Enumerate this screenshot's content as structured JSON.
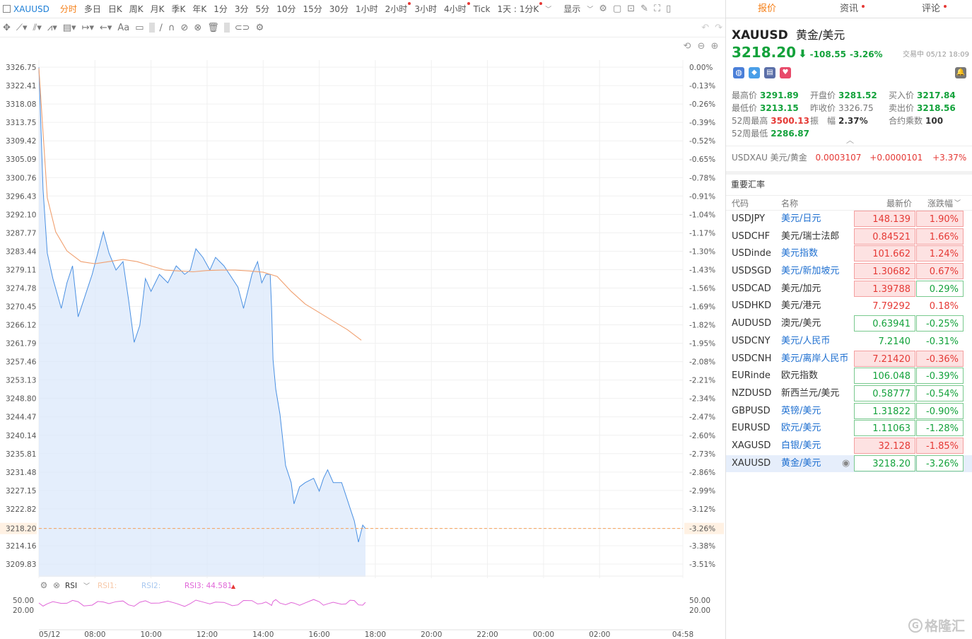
{
  "toolbar": {
    "symbol": "XAUUSD",
    "timeframes": [
      "分时",
      "多日",
      "日K",
      "周K",
      "月K",
      "季K",
      "年K",
      "1分",
      "3分",
      "5分",
      "10分",
      "15分",
      "30分",
      "1小时",
      "2小时",
      "3小时",
      "4小时",
      "Tick",
      "1天 : 1分K"
    ],
    "active_timeframe": "分时",
    "display_label": "显示"
  },
  "chart_data": {
    "type": "line",
    "symbol": "XAUUSD",
    "x_ticks": [
      "05/12",
      "08:00",
      "10:00",
      "12:00",
      "14:00",
      "16:00",
      "18:00",
      "20:00",
      "22:00",
      "00:00",
      "02:00",
      "04:58"
    ],
    "y_ticks": [
      "3326.75",
      "3322.41",
      "3318.08",
      "3313.75",
      "3309.42",
      "3305.09",
      "3300.76",
      "3296.43",
      "3292.10",
      "3287.77",
      "3283.44",
      "3279.11",
      "3274.78",
      "3270.45",
      "3266.12",
      "3261.79",
      "3257.46",
      "3253.13",
      "3248.80",
      "3244.47",
      "3240.14",
      "3235.81",
      "3231.48",
      "3227.15",
      "3222.82",
      "3218.20",
      "3214.16",
      "3209.83"
    ],
    "pct_ticks": [
      "0.00%",
      "-0.13%",
      "-0.26%",
      "-0.39%",
      "-0.52%",
      "-0.65%",
      "-0.78%",
      "-0.91%",
      "-1.04%",
      "-1.17%",
      "-1.30%",
      "-1.43%",
      "-1.56%",
      "-1.69%",
      "-1.82%",
      "-1.95%",
      "-2.08%",
      "-2.21%",
      "-2.34%",
      "-2.47%",
      "-2.60%",
      "-2.73%",
      "-2.86%",
      "-2.99%",
      "-3.12%",
      "-3.26%",
      "-3.38%",
      "-3.51%"
    ],
    "ylim": [
      3209.83,
      3326.75
    ],
    "prev_close": 3326.75,
    "last_price": 3218.2,
    "last_pct": "-3.26%",
    "price_series": [
      [
        6.0,
        3326.7
      ],
      [
        6.15,
        3298
      ],
      [
        6.3,
        3283
      ],
      [
        6.5,
        3277
      ],
      [
        6.8,
        3270
      ],
      [
        7.0,
        3276
      ],
      [
        7.2,
        3280
      ],
      [
        7.4,
        3268
      ],
      [
        7.6,
        3272
      ],
      [
        7.9,
        3278
      ],
      [
        8.1,
        3283
      ],
      [
        8.3,
        3288
      ],
      [
        8.5,
        3283
      ],
      [
        8.75,
        3279
      ],
      [
        9.0,
        3281
      ],
      [
        9.2,
        3272
      ],
      [
        9.4,
        3262
      ],
      [
        9.6,
        3266
      ],
      [
        9.8,
        3277
      ],
      [
        10.0,
        3274
      ],
      [
        10.3,
        3278
      ],
      [
        10.6,
        3276
      ],
      [
        10.9,
        3280
      ],
      [
        11.2,
        3278
      ],
      [
        11.4,
        3279
      ],
      [
        11.6,
        3284
      ],
      [
        11.85,
        3282
      ],
      [
        12.1,
        3279
      ],
      [
        12.3,
        3282
      ],
      [
        12.6,
        3280
      ],
      [
        12.9,
        3277
      ],
      [
        13.1,
        3275
      ],
      [
        13.3,
        3270
      ],
      [
        13.6,
        3278
      ],
      [
        13.8,
        3281
      ],
      [
        13.95,
        3276
      ],
      [
        14.1,
        3278
      ],
      [
        14.25,
        3278
      ],
      [
        14.3,
        3270
      ],
      [
        14.35,
        3258
      ],
      [
        14.45,
        3251
      ],
      [
        14.6,
        3245
      ],
      [
        14.8,
        3233
      ],
      [
        15.0,
        3229
      ],
      [
        15.1,
        3224
      ],
      [
        15.3,
        3228
      ],
      [
        15.5,
        3229
      ],
      [
        15.8,
        3230
      ],
      [
        16.0,
        3227
      ],
      [
        16.15,
        3230
      ],
      [
        16.3,
        3232
      ],
      [
        16.5,
        3229
      ],
      [
        16.8,
        3229
      ],
      [
        16.95,
        3226
      ],
      [
        17.1,
        3223
      ],
      [
        17.25,
        3220
      ],
      [
        17.4,
        3215
      ],
      [
        17.55,
        3219
      ],
      [
        17.65,
        3218.2
      ]
    ],
    "avg_series": [
      [
        6.0,
        3326.5
      ],
      [
        6.3,
        3296
      ],
      [
        6.6,
        3288
      ],
      [
        7.0,
        3283.5
      ],
      [
        7.5,
        3281
      ],
      [
        8.0,
        3280.5
      ],
      [
        8.5,
        3281
      ],
      [
        9.0,
        3281.5
      ],
      [
        9.5,
        3281
      ],
      [
        10.0,
        3280
      ],
      [
        10.5,
        3279
      ],
      [
        11.0,
        3278.8
      ],
      [
        11.5,
        3278.6
      ],
      [
        12.0,
        3278.9
      ],
      [
        12.5,
        3279
      ],
      [
        13.0,
        3279
      ],
      [
        13.5,
        3278.8
      ],
      [
        14.0,
        3278.5
      ],
      [
        14.5,
        3277.5
      ],
      [
        15.0,
        3274
      ],
      [
        15.5,
        3271
      ],
      [
        16.0,
        3269
      ],
      [
        16.5,
        3267
      ],
      [
        17.0,
        3265
      ],
      [
        17.5,
        3262.5
      ]
    ],
    "rsi_label": "RSI",
    "rsi1_label": "RSI1:",
    "rsi2_label": "RSI2:",
    "rsi3_label": "RSI3: 44.581",
    "rsi_ticks": [
      "50.00",
      "20.00"
    ],
    "colors": {
      "line": "#4a90e2",
      "fill": "#dbe8fb",
      "avg": "#f0a070",
      "last": "#f5a05a",
      "rsi": "#e066d8",
      "axis_text": "#555"
    }
  },
  "quote": {
    "tabs": [
      "报价",
      "资讯",
      "评论"
    ],
    "symbol": "XAUUSD",
    "name": "黄金/美元",
    "price": "3218.20",
    "change": "-108.55",
    "change_pct": "-3.26%",
    "status": "交易中 05/12 18:09",
    "stats": [
      {
        "label": "最高价",
        "value": "3291.89",
        "color": "green"
      },
      {
        "label": "开盘价",
        "value": "3281.52",
        "color": "green"
      },
      {
        "label": "买入价",
        "value": "3217.84",
        "color": "green"
      },
      {
        "label": "最低价",
        "value": "3213.15",
        "color": "green"
      },
      {
        "label": "昨收价",
        "value": "3326.75",
        "color": "gray"
      },
      {
        "label": "卖出价",
        "value": "3218.56",
        "color": "green"
      },
      {
        "label": "52周最高",
        "value": "3500.13",
        "color": "red"
      },
      {
        "label": "振　幅",
        "value": "2.37%",
        "color": "dark"
      },
      {
        "label": "合约乘数",
        "value": "100",
        "color": "dark"
      },
      {
        "label": "52周最低",
        "value": "2286.87",
        "color": "green"
      }
    ],
    "cross": {
      "pair": "USDXAU 美元/黄金",
      "value": "0.0003107",
      "change": "+0.0000101",
      "pct": "+3.37%"
    }
  },
  "fx": {
    "section_title": "重要汇率",
    "headers": [
      "代码",
      "名称",
      "最新价",
      "涨跌幅"
    ],
    "rows": [
      {
        "code": "USDJPY",
        "name": "美元/日元",
        "price": "148.139",
        "pct": "1.90%",
        "dir": "up",
        "link": true
      },
      {
        "code": "USDCHF",
        "name": "美元/瑞士法郎",
        "price": "0.84521",
        "pct": "1.66%",
        "dir": "up",
        "link": false
      },
      {
        "code": "USDinde",
        "name": "美元指数",
        "price": "101.662",
        "pct": "1.24%",
        "dir": "up",
        "link": true
      },
      {
        "code": "USDSGD",
        "name": "美元/新加坡元",
        "price": "1.30682",
        "pct": "0.67%",
        "dir": "up",
        "link": true
      },
      {
        "code": "USDCAD",
        "name": "美元/加元",
        "price": "1.39788",
        "pct": "0.29%",
        "dir": "up",
        "link": false,
        "pctdir": "dn"
      },
      {
        "code": "USDHKD",
        "name": "美元/港元",
        "price": "7.79292",
        "pct": "0.18%",
        "dir": "nb",
        "link": false
      },
      {
        "code": "AUDUSD",
        "name": "澳元/美元",
        "price": "0.63941",
        "pct": "-0.25%",
        "dir": "dn",
        "link": false
      },
      {
        "code": "USDCNY",
        "name": "美元/人民币",
        "price": "7.2140",
        "pct": "-0.31%",
        "dir": "plain",
        "link": true
      },
      {
        "code": "USDCNH",
        "name": "美元/离岸人民币",
        "price": "7.21420",
        "pct": "-0.36%",
        "dir": "up",
        "link": true
      },
      {
        "code": "EURinde",
        "name": "欧元指数",
        "price": "106.048",
        "pct": "-0.39%",
        "dir": "dn",
        "link": false
      },
      {
        "code": "NZDUSD",
        "name": "新西兰元/美元",
        "price": "0.58777",
        "pct": "-0.54%",
        "dir": "dn",
        "link": false
      },
      {
        "code": "GBPUSD",
        "name": "英镑/美元",
        "price": "1.31822",
        "pct": "-0.90%",
        "dir": "dn",
        "link": true
      },
      {
        "code": "EURUSD",
        "name": "欧元/美元",
        "price": "1.11063",
        "pct": "-1.28%",
        "dir": "dn",
        "link": true
      },
      {
        "code": "XAGUSD",
        "name": "白银/美元",
        "price": "32.128",
        "pct": "-1.85%",
        "dir": "up",
        "link": true
      },
      {
        "code": "XAUUSD",
        "name": "黄金/美元",
        "price": "3218.20",
        "pct": "-3.26%",
        "dir": "dn",
        "link": true,
        "selected": true
      }
    ]
  },
  "watermark": "格隆汇"
}
